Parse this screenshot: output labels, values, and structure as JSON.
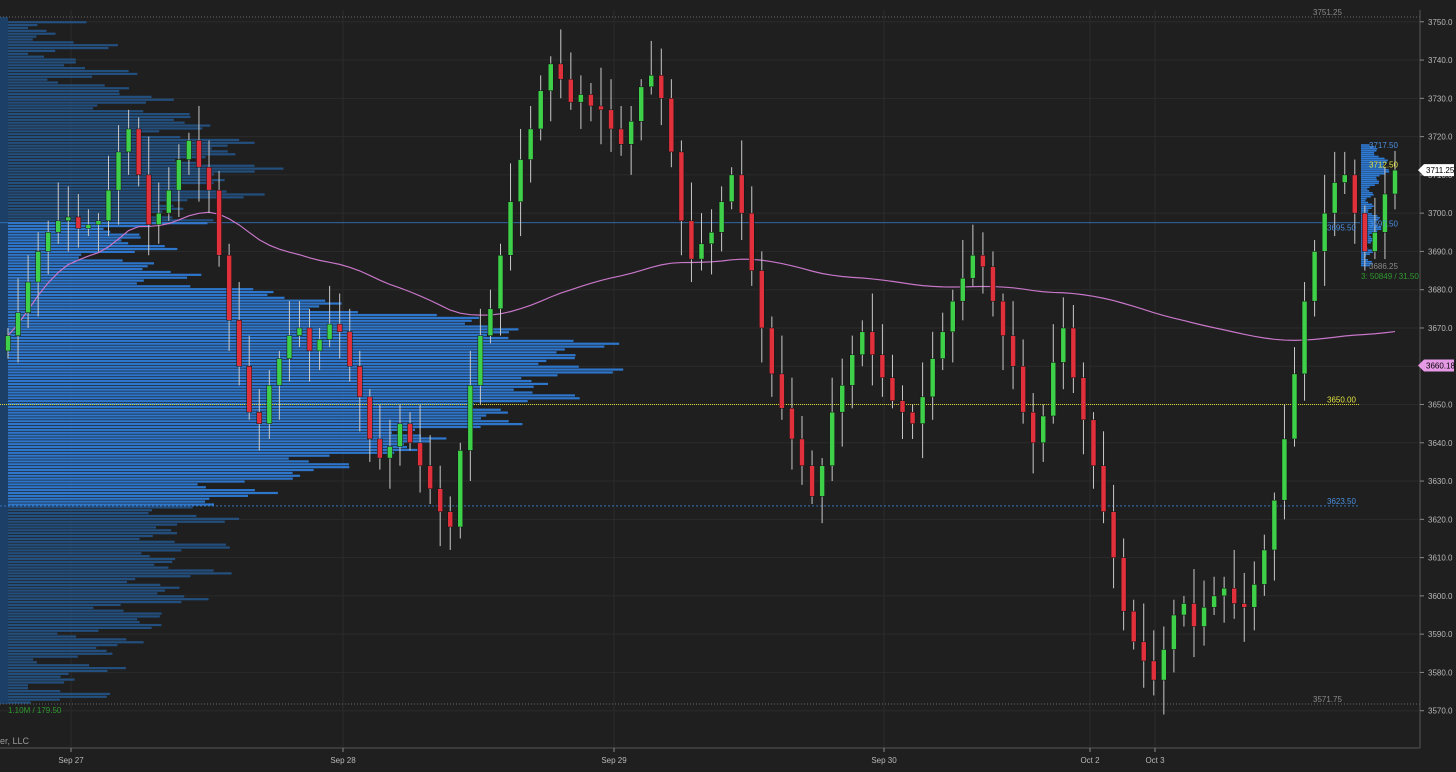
{
  "chart_data": {
    "type": "candlestick",
    "title": "",
    "ylim": [
      3565,
      3755
    ],
    "y_ticks": [
      3570,
      3580,
      3590,
      3600,
      3610,
      3620,
      3630,
      3640,
      3650,
      3660,
      3670,
      3680,
      3690,
      3700,
      3710,
      3720,
      3730,
      3740,
      3750
    ],
    "x_labels": [
      "Sep 27",
      "Sep 28",
      "Sep 29",
      "Sep 30",
      "Oct 2",
      "Oct 3"
    ],
    "grid": true,
    "last_price": "3711.25",
    "vwap_value": "3660.18",
    "level_labels": [
      "3751.25",
      "3650.00",
      "3623.50",
      "3571.75",
      "3717.50",
      "3712.50",
      "3697.50",
      "3686.25",
      "3695.50"
    ],
    "profile_totals": "1.10M / 179.50",
    "session_profile_totals": "3: 50849 / 31.50",
    "closes": [
      3668,
      3674,
      3682,
      3690,
      3695,
      3698,
      3699,
      3696,
      3697,
      3698,
      3706,
      3716,
      3722,
      3710,
      3697,
      3700,
      3706,
      3714,
      3719,
      3712,
      3706,
      3689,
      3672,
      3660,
      3648,
      3645,
      3655,
      3662,
      3668,
      3670,
      3664,
      3667,
      3671,
      3669,
      3660,
      3652,
      3641,
      3636,
      3639,
      3645,
      3640,
      3634,
      3628,
      3622,
      3618,
      3638,
      3655,
      3668,
      3675,
      3689,
      3703,
      3714,
      3722,
      3732,
      3739,
      3735,
      3729,
      3731,
      3728,
      3727,
      3722,
      3718,
      3724,
      3733,
      3736,
      3730,
      3716,
      3698,
      3688,
      3692,
      3695,
      3703,
      3710,
      3700,
      3685,
      3670,
      3658,
      3649,
      3641,
      3634,
      3626,
      3634,
      3648,
      3655,
      3663,
      3669,
      3663,
      3657,
      3651,
      3648,
      3645,
      3652,
      3662,
      3669,
      3677,
      3683,
      3689,
      3686,
      3677,
      3668,
      3660,
      3648,
      3640,
      3647,
      3661,
      3670,
      3657,
      3646,
      3634,
      3622,
      3610,
      3596,
      3588,
      3583,
      3578,
      3586,
      3595,
      3598,
      3592,
      3597,
      3600,
      3602,
      3598,
      3597,
      3603,
      3612,
      3625,
      3641,
      3658,
      3677,
      3690,
      3700,
      3708,
      3710,
      3700,
      3690,
      3695,
      3705,
      3711.25
    ],
    "vwap_profile_mid_session": "3650.00"
  }
}
